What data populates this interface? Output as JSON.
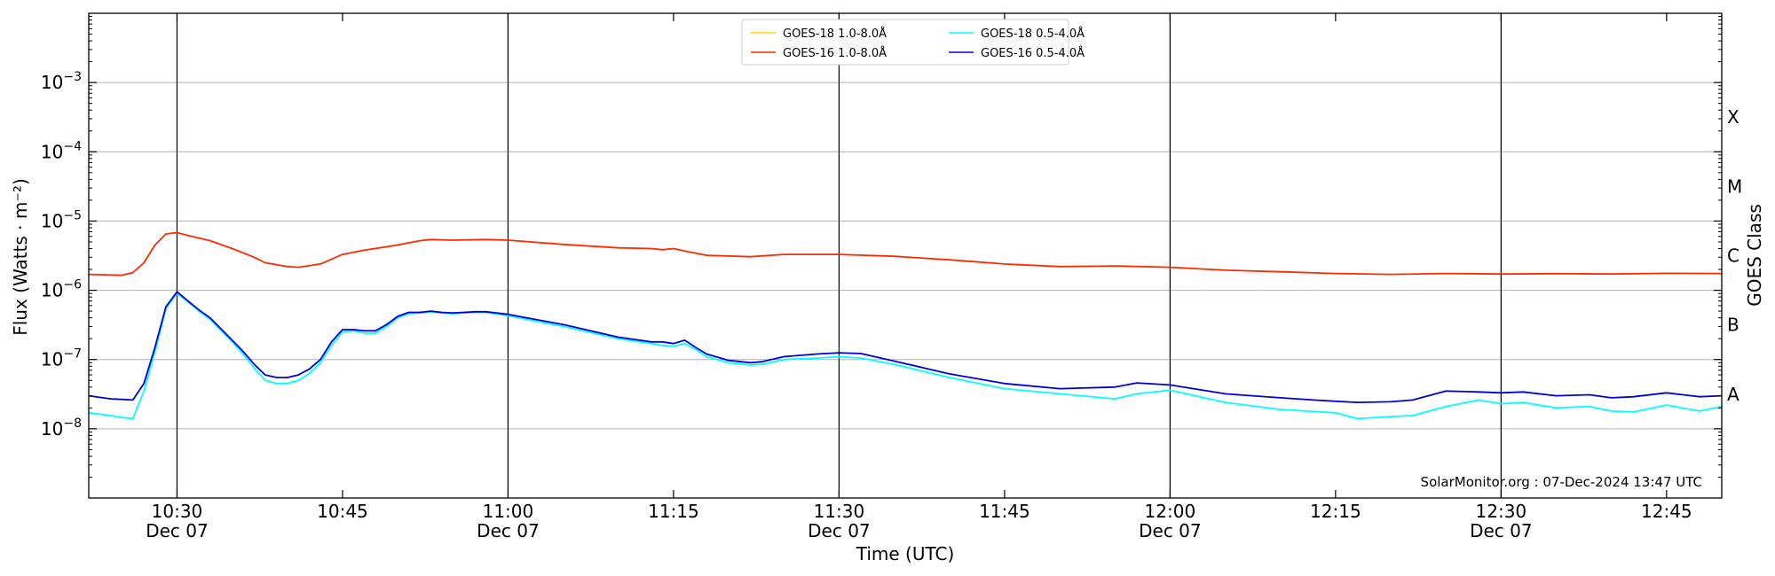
{
  "chart_data": {
    "type": "line",
    "xlabel": "Time (UTC)",
    "ylabel": "Flux (Watts · m⁻²)",
    "ylabel_right": "GOES Class",
    "yscale": "log",
    "ylim": [
      1e-09,
      0.01
    ],
    "x_unit": "minutes",
    "xlim": [
      "10:22",
      "12:50"
    ],
    "x_ticks": [
      {
        "t": "10:30",
        "label": "10:30",
        "date": "Dec 07"
      },
      {
        "t": "10:45",
        "label": "10:45",
        "date": ""
      },
      {
        "t": "11:00",
        "label": "11:00",
        "date": "Dec 07"
      },
      {
        "t": "11:15",
        "label": "11:15",
        "date": ""
      },
      {
        "t": "11:30",
        "label": "11:30",
        "date": "Dec 07"
      },
      {
        "t": "11:45",
        "label": "11:45",
        "date": ""
      },
      {
        "t": "12:00",
        "label": "12:00",
        "date": "Dec 07"
      },
      {
        "t": "12:15",
        "label": "12:15",
        "date": ""
      },
      {
        "t": "12:30",
        "label": "12:30",
        "date": "Dec 07"
      },
      {
        "t": "12:45",
        "label": "12:45",
        "date": ""
      }
    ],
    "y_ticks": [
      {
        "value": 1e-08,
        "base": "10",
        "exp": "−8"
      },
      {
        "value": 1e-07,
        "base": "10",
        "exp": "−7"
      },
      {
        "value": 1e-06,
        "base": "10",
        "exp": "−6"
      },
      {
        "value": 1e-05,
        "base": "10",
        "exp": "−5"
      },
      {
        "value": 0.0001,
        "base": "10",
        "exp": "−4"
      },
      {
        "value": 0.001,
        "base": "10",
        "exp": "−3"
      }
    ],
    "goes_classes": [
      {
        "label": "A",
        "value": 3.16e-08
      },
      {
        "label": "B",
        "value": 3.16e-07
      },
      {
        "label": "C",
        "value": 3.16e-06
      },
      {
        "label": "M",
        "value": 3.16e-05
      },
      {
        "label": "X",
        "value": 0.000316
      }
    ],
    "vertical_lines": [
      "10:30",
      "11:00",
      "11:30",
      "12:00",
      "12:30"
    ],
    "grid": "horizontal at decades",
    "legend": {
      "placement": "top-center",
      "entries": [
        {
          "label": "GOES-18 1.0-8.0Å",
          "color": "#ffd700"
        },
        {
          "label": "GOES-18 0.5-4.0Å",
          "color": "#00ffff"
        },
        {
          "label": "GOES-16 1.0-8.0Å",
          "color": "#ff2a00"
        },
        {
          "label": "GOES-16 0.5-4.0Å",
          "color": "#0000dd"
        }
      ]
    },
    "annotation": "SolarMonitor.org : 07-Dec-2024 13:47 UTC",
    "series": [
      {
        "name": "GOES-18 1.0-8.0Å",
        "color": "#ffd700",
        "x": [],
        "y": []
      },
      {
        "name": "GOES-16 1.0-8.0Å",
        "color": "#ff2a00",
        "x": [
          "10:22",
          "10:25",
          "10:26",
          "10:27",
          "10:28",
          "10:29",
          "10:30",
          "10:31",
          "10:33",
          "10:35",
          "10:37",
          "10:38",
          "10:40",
          "10:41",
          "10:43",
          "10:45",
          "10:47",
          "10:50",
          "10:52",
          "10:53",
          "10:55",
          "10:58",
          "11:00",
          "11:05",
          "11:10",
          "11:13",
          "11:14",
          "11:15",
          "11:16",
          "11:18",
          "11:22",
          "11:25",
          "11:30",
          "11:35",
          "11:40",
          "11:45",
          "11:50",
          "11:55",
          "12:00",
          "12:05",
          "12:10",
          "12:15",
          "12:20",
          "12:25",
          "12:30",
          "12:35",
          "12:40",
          "12:45",
          "12:50"
        ],
        "y": [
          1.7e-06,
          1.65e-06,
          1.8e-06,
          2.5e-06,
          4.5e-06,
          6.5e-06,
          6.8e-06,
          6.2e-06,
          5.2e-06,
          4e-06,
          3e-06,
          2.5e-06,
          2.2e-06,
          2.15e-06,
          2.4e-06,
          3.3e-06,
          3.8e-06,
          4.5e-06,
          5.2e-06,
          5.4e-06,
          5.3e-06,
          5.4e-06,
          5.3e-06,
          4.6e-06,
          4.1e-06,
          4e-06,
          3.85e-06,
          4e-06,
          3.7e-06,
          3.2e-06,
          3.05e-06,
          3.3e-06,
          3.3e-06,
          3.1e-06,
          2.75e-06,
          2.4e-06,
          2.2e-06,
          2.25e-06,
          2.15e-06,
          1.95e-06,
          1.85e-06,
          1.75e-06,
          1.7e-06,
          1.75e-06,
          1.72e-06,
          1.74e-06,
          1.72e-06,
          1.76e-06,
          1.75e-06
        ]
      },
      {
        "name": "GOES-18 0.5-4.0Å",
        "color": "#00ffff",
        "x": [
          "10:22",
          "10:24",
          "10:25",
          "10:26",
          "10:27",
          "10:28",
          "10:29",
          "10:30",
          "10:31",
          "10:32",
          "10:33",
          "10:35",
          "10:36",
          "10:37",
          "10:38",
          "10:39",
          "10:40",
          "10:41",
          "10:42",
          "10:43",
          "10:44",
          "10:45",
          "10:46",
          "10:47",
          "10:48",
          "10:49",
          "10:50",
          "10:51",
          "10:52",
          "10:53",
          "10:54",
          "10:55",
          "10:56",
          "10:57",
          "10:58",
          "11:00",
          "11:05",
          "11:10",
          "11:13",
          "11:14",
          "11:15",
          "11:16",
          "11:17",
          "11:18",
          "11:20",
          "11:22",
          "11:23",
          "11:25",
          "11:28",
          "11:30",
          "11:32",
          "11:35",
          "11:40",
          "11:45",
          "11:50",
          "11:55",
          "11:57",
          "12:00",
          "12:05",
          "12:10",
          "12:15",
          "12:17",
          "12:20",
          "12:22",
          "12:25",
          "12:28",
          "12:30",
          "12:32",
          "12:35",
          "12:38",
          "12:40",
          "12:42",
          "12:45",
          "12:48",
          "12:50"
        ],
        "y": [
          1.7e-08,
          1.55e-08,
          1.45e-08,
          1.4e-08,
          3.5e-08,
          1.3e-07,
          5.5e-07,
          9e-07,
          6.8e-07,
          5e-07,
          3.8e-07,
          1.8e-07,
          1.2e-07,
          7.5e-08,
          5e-08,
          4.5e-08,
          4.5e-08,
          5e-08,
          6.3e-08,
          9e-08,
          1.6e-07,
          2.5e-07,
          2.6e-07,
          2.4e-07,
          2.4e-07,
          3e-07,
          4e-07,
          4.6e-07,
          4.7e-07,
          4.9e-07,
          4.7e-07,
          4.6e-07,
          4.7e-07,
          4.8e-07,
          4.8e-07,
          4.3e-07,
          3e-07,
          2e-07,
          1.7e-07,
          1.6e-07,
          1.55e-07,
          1.7e-07,
          1.4e-07,
          1.1e-07,
          9e-08,
          8.3e-08,
          8.5e-08,
          1e-07,
          1.05e-07,
          1.1e-07,
          1.05e-07,
          8.5e-08,
          5.5e-08,
          3.8e-08,
          3.2e-08,
          2.7e-08,
          3.2e-08,
          3.6e-08,
          2.4e-08,
          1.9e-08,
          1.7e-08,
          1.4e-08,
          1.5e-08,
          1.55e-08,
          2.1e-08,
          2.6e-08,
          2.3e-08,
          2.4e-08,
          2e-08,
          2.1e-08,
          1.8e-08,
          1.75e-08,
          2.2e-08,
          1.8e-08,
          2.1e-08
        ]
      },
      {
        "name": "GOES-16 0.5-4.0Å",
        "color": "#0000dd",
        "x": [
          "10:22",
          "10:24",
          "10:26",
          "10:27",
          "10:28",
          "10:29",
          "10:30",
          "10:31",
          "10:32",
          "10:33",
          "10:35",
          "10:36",
          "10:37",
          "10:38",
          "10:39",
          "10:40",
          "10:41",
          "10:42",
          "10:43",
          "10:44",
          "10:45",
          "10:46",
          "10:47",
          "10:48",
          "10:49",
          "10:50",
          "10:51",
          "10:52",
          "10:53",
          "10:54",
          "10:55",
          "10:56",
          "10:57",
          "10:58",
          "11:00",
          "11:05",
          "11:10",
          "11:13",
          "11:14",
          "11:15",
          "11:16",
          "11:17",
          "11:18",
          "11:20",
          "11:22",
          "11:23",
          "11:25",
          "11:28",
          "11:30",
          "11:32",
          "11:35",
          "11:40",
          "11:45",
          "11:50",
          "11:55",
          "11:57",
          "12:00",
          "12:05",
          "12:10",
          "12:13",
          "12:15",
          "12:17",
          "12:20",
          "12:22",
          "12:25",
          "12:28",
          "12:30",
          "12:32",
          "12:35",
          "12:38",
          "12:40",
          "12:42",
          "12:45",
          "12:48",
          "12:50"
        ],
        "y": [
          3e-08,
          2.7e-08,
          2.6e-08,
          4.5e-08,
          1.5e-07,
          5.8e-07,
          9.5e-07,
          7e-07,
          5.2e-07,
          4e-07,
          1.9e-07,
          1.3e-07,
          8.5e-08,
          6e-08,
          5.5e-08,
          5.5e-08,
          6e-08,
          7.3e-08,
          1e-07,
          1.8e-07,
          2.7e-07,
          2.7e-07,
          2.6e-07,
          2.6e-07,
          3.2e-07,
          4.2e-07,
          4.8e-07,
          4.8e-07,
          5e-07,
          4.8e-07,
          4.7e-07,
          4.8e-07,
          4.9e-07,
          4.9e-07,
          4.5e-07,
          3.2e-07,
          2.1e-07,
          1.8e-07,
          1.8e-07,
          1.7e-07,
          1.9e-07,
          1.5e-07,
          1.2e-07,
          9.7e-08,
          9e-08,
          9.3e-08,
          1.1e-07,
          1.2e-07,
          1.25e-07,
          1.22e-07,
          9.5e-08,
          6.2e-08,
          4.5e-08,
          3.8e-08,
          4e-08,
          4.6e-08,
          4.3e-08,
          3.2e-08,
          2.8e-08,
          2.6e-08,
          2.5e-08,
          2.4e-08,
          2.45e-08,
          2.6e-08,
          3.5e-08,
          3.4e-08,
          3.3e-08,
          3.4e-08,
          3e-08,
          3.1e-08,
          2.8e-08,
          2.9e-08,
          3.3e-08,
          2.9e-08,
          3e-08
        ]
      }
    ]
  }
}
